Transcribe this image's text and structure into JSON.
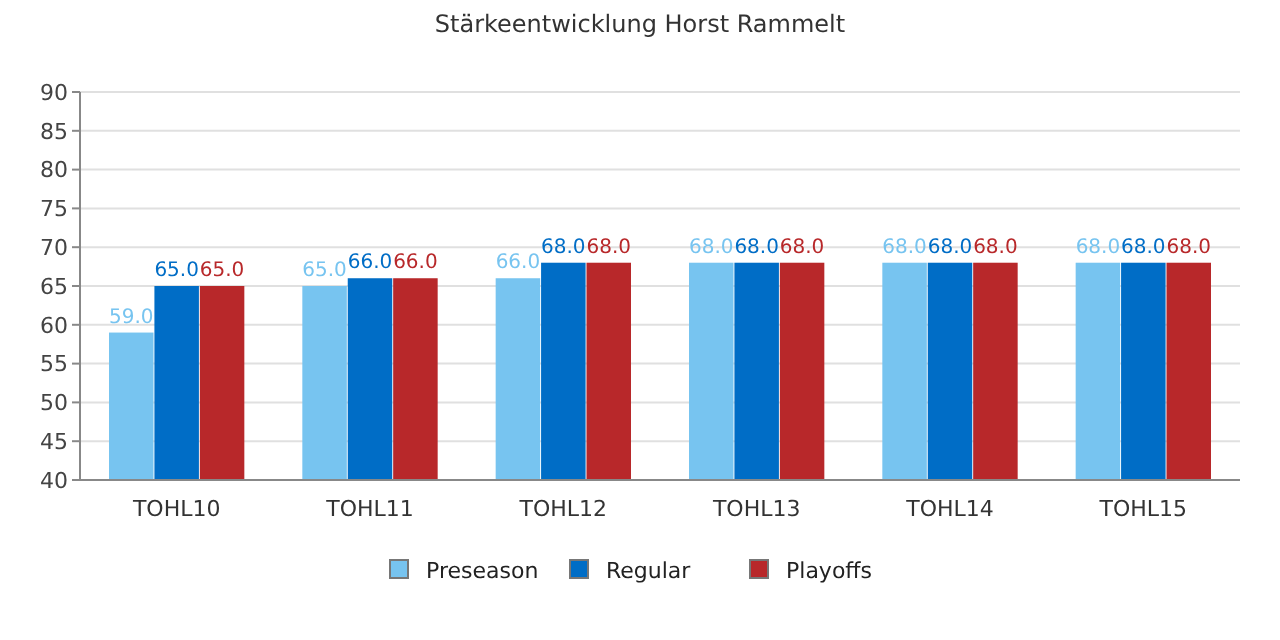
{
  "chart_data": {
    "type": "bar",
    "title": "Stärkeentwicklung Horst Rammelt",
    "categories": [
      "TOHL10",
      "TOHL11",
      "TOHL12",
      "TOHL13",
      "TOHL14",
      "TOHL15"
    ],
    "series": [
      {
        "name": "Preseason",
        "color": "#77c4f0",
        "values": [
          59,
          65,
          66,
          68,
          68,
          68
        ],
        "value_labels": [
          "59.0",
          "65.0",
          "66.0",
          "68.0",
          "68.0",
          "68.0"
        ]
      },
      {
        "name": "Regular",
        "color": "#006dc6",
        "values": [
          65,
          66,
          68,
          68,
          68,
          68
        ],
        "value_labels": [
          "65.0",
          "66.0",
          "68.0",
          "68.0",
          "68.0",
          "68.0"
        ]
      },
      {
        "name": "Playoffs",
        "color": "#b8282a",
        "values": [
          65,
          66,
          68,
          68,
          68,
          68
        ],
        "value_labels": [
          "65.0",
          "66.0",
          "68.0",
          "68.0",
          "68.0",
          "68.0"
        ]
      }
    ],
    "ylim": [
      40,
      90
    ],
    "yticks": [
      40,
      45,
      50,
      55,
      60,
      65,
      70,
      75,
      80,
      85,
      90
    ],
    "grid": "y",
    "legend": "bottom"
  }
}
